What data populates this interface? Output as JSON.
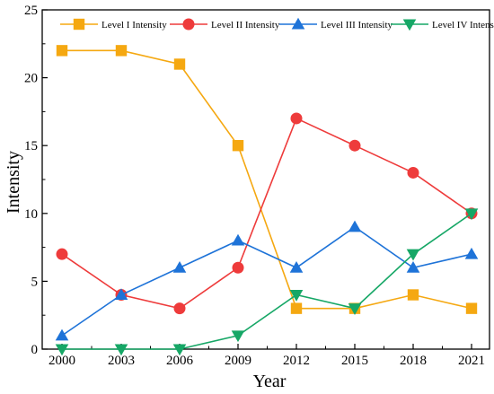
{
  "chart_data": {
    "type": "line",
    "xlabel": "Year",
    "ylabel": "Intensity",
    "x": [
      2000,
      2003,
      2006,
      2009,
      2012,
      2015,
      2018,
      2021
    ],
    "x_tick_labels": [
      "2000",
      "2003",
      "2006",
      "2009",
      "2012",
      "2015",
      "2018",
      "2021"
    ],
    "ylim": [
      0,
      25
    ],
    "y_ticks": [
      0,
      5,
      10,
      15,
      20,
      25
    ],
    "y_tick_labels": [
      "0",
      "5",
      "10",
      "15",
      "20",
      "25"
    ],
    "grid": false,
    "legend_position": "top",
    "series": [
      {
        "name": "Level I Intensity",
        "color": "#F5A811",
        "marker": "square",
        "values": [
          22,
          22,
          21,
          15,
          3,
          3,
          4,
          3
        ]
      },
      {
        "name": "Level II Intensity",
        "color": "#EE3B3B",
        "marker": "circle",
        "values": [
          7,
          4,
          3,
          6,
          17,
          15,
          13,
          10
        ]
      },
      {
        "name": "Level III Intensity",
        "color": "#1E73D8",
        "marker": "triangle-up",
        "values": [
          1,
          4,
          6,
          8,
          6,
          9,
          6,
          7
        ]
      },
      {
        "name": "Level IV Intensity",
        "color": "#16A766",
        "marker": "triangle-down",
        "values": [
          0,
          0,
          0,
          1,
          4,
          3,
          7,
          10
        ]
      }
    ]
  }
}
